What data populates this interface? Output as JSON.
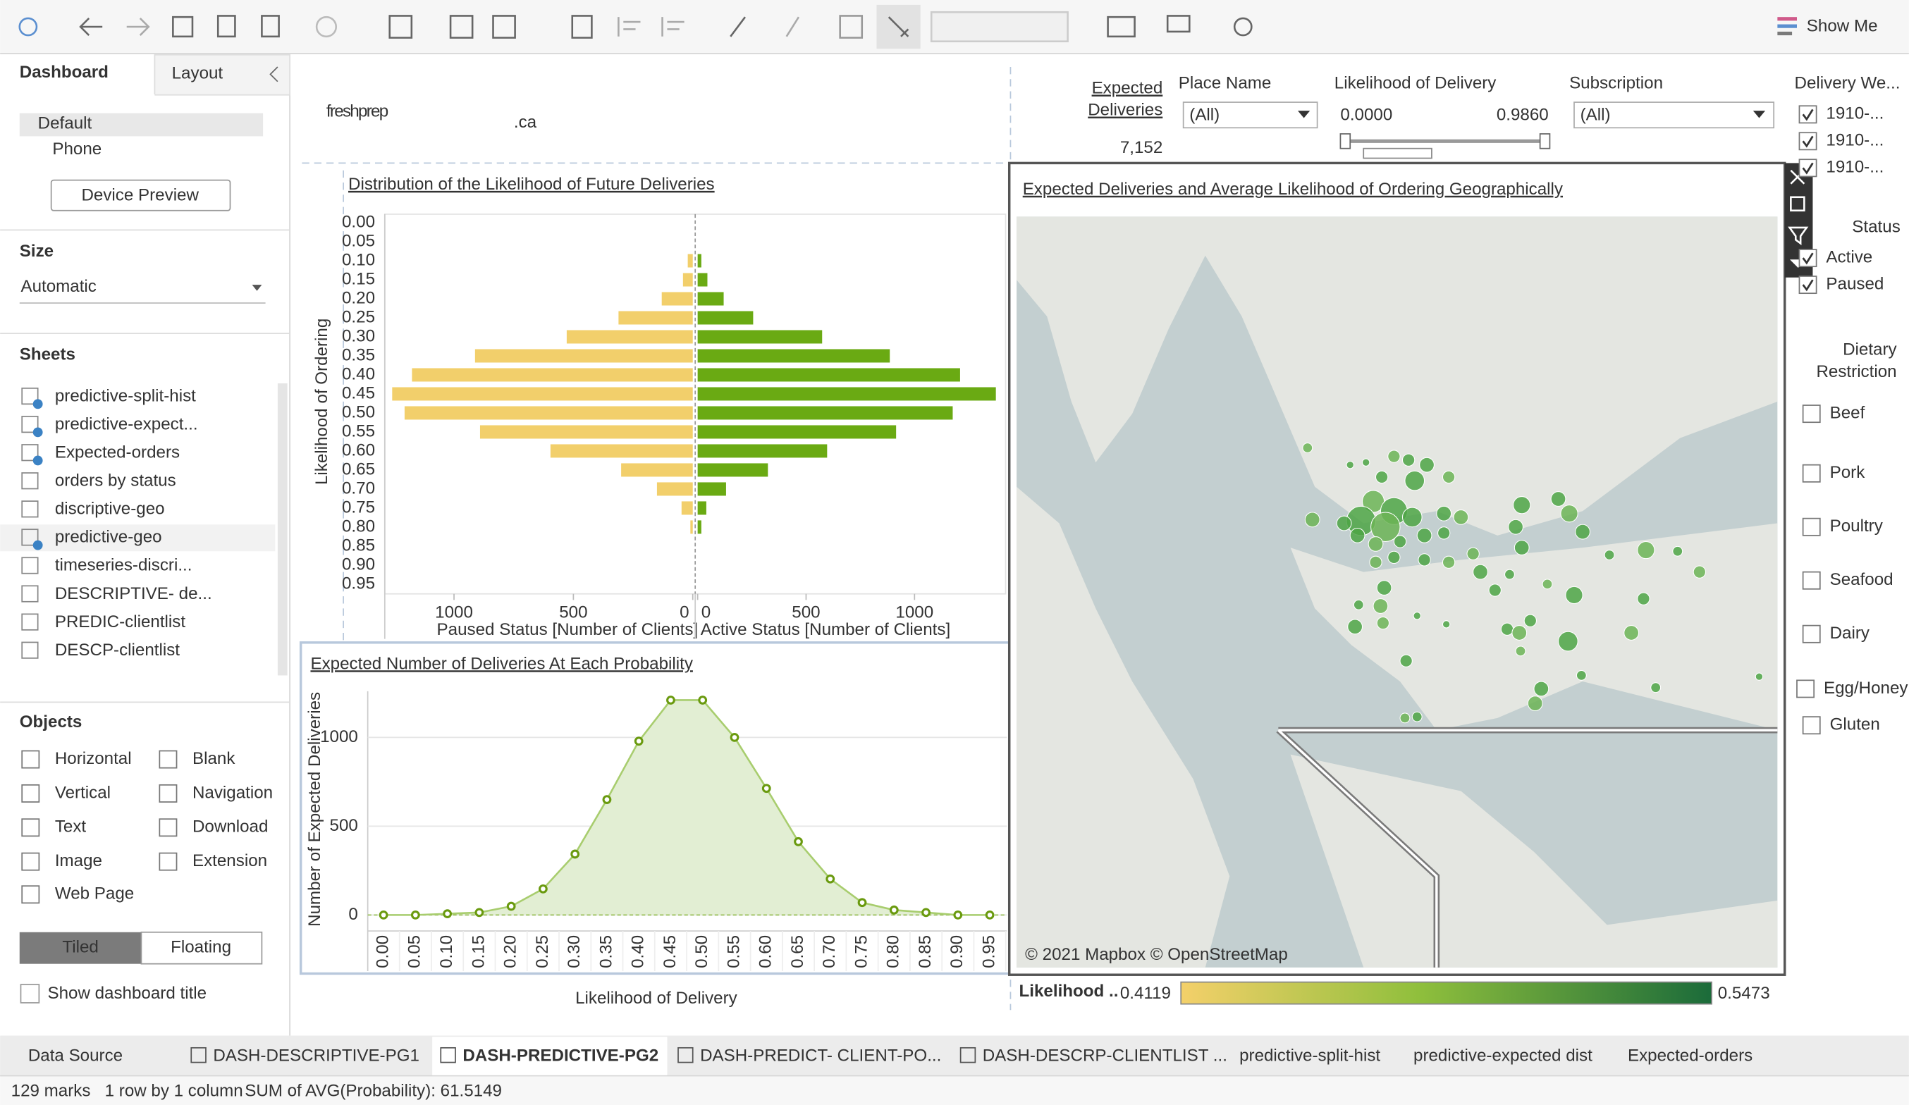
{
  "toolbar": {
    "show_me": "Show Me"
  },
  "side_panel": {
    "tabs": [
      "Dashboard",
      "Layout"
    ],
    "devices": [
      "Default",
      "Phone"
    ],
    "device_preview": "Device Preview",
    "size_title": "Size",
    "size_value": "Automatic",
    "sheets_title": "Sheets",
    "sheets": [
      "predictive-split-hist",
      "predictive-expect...",
      "Expected-orders",
      "orders by status",
      "discriptive-geo",
      "predictive-geo",
      "timeseries-discri...",
      "DESCRIPTIVE- de...",
      "PREDIC-clientlist",
      "DESCP-clientlist"
    ],
    "objects_title": "Objects",
    "objects": [
      "Horizontal",
      "Blank",
      "Vertical",
      "Navigation",
      "Text",
      "Download",
      "Image",
      "Extension",
      "Web Page"
    ],
    "layout_modes": [
      "Tiled",
      "Floating"
    ],
    "show_title": "Show dashboard title"
  },
  "dashboard": {
    "logo": "freshprep",
    "logo_suffix": ".ca",
    "kpi": {
      "label": [
        "Expected",
        "Deliveries"
      ],
      "value": "7,152"
    },
    "filters": {
      "place_name": {
        "title": "Place Name",
        "value": "(All)"
      },
      "likelihood": {
        "title": "Likelihood of Delivery",
        "min": "0.0000",
        "max": "0.9860"
      },
      "subscription": {
        "title": "Subscription",
        "value": "(All)"
      },
      "delivery_week": {
        "title": "Delivery We...",
        "items": [
          "1910-...",
          "1910-...",
          "1910-..."
        ]
      },
      "status": {
        "title": "Status",
        "items": [
          "Active",
          "Paused"
        ]
      },
      "dietary": {
        "title": [
          "Dietary",
          "Restriction"
        ],
        "items": [
          "Beef",
          "Pork",
          "Poultry",
          "Seafood",
          "Dairy",
          "Egg/Honey",
          "Gluten"
        ]
      }
    },
    "map": {
      "title": "Expected Deliveries and  Average Likelihood of Ordering  Geographically",
      "attribution": "© 2021 Mapbox © OpenStreetMap",
      "legend": {
        "title": "Likelihood ..",
        "min": "0.4119",
        "max": "0.5473"
      }
    }
  },
  "chart_data": [
    {
      "type": "bar",
      "title": "Distribution of the Likelihood of Future Deliveries",
      "y_label": "Likelihood of Ordering",
      "categories": [
        "0.00",
        "0.05",
        "0.10",
        "0.15",
        "0.20",
        "0.25",
        "0.30",
        "0.35",
        "0.40",
        "0.45",
        "0.50",
        "0.55",
        "0.60",
        "0.65",
        "0.70",
        "0.75",
        "0.80",
        "0.85",
        "0.90",
        "0.95"
      ],
      "series": [
        {
          "x_label": "Paused Status [Number of Clients]",
          "color": "#f2cf6b",
          "values": [
            0,
            0,
            21,
            41,
            130,
            311,
            528,
            912,
            1176,
            1259,
            1207,
            891,
            596,
            300,
            150,
            47,
            10,
            0,
            0,
            0
          ],
          "xlim": [
            0,
            1290
          ],
          "xticks": [
            0,
            500,
            1000
          ]
        },
        {
          "x_label": "Active Status [Number of Clients]",
          "color": "#6aaa13",
          "values": [
            0,
            0,
            17,
            45,
            120,
            256,
            574,
            886,
            1210,
            1375,
            1176,
            915,
            597,
            324,
            131,
            40,
            17,
            0,
            0,
            0
          ],
          "xlim": [
            0,
            1420
          ],
          "xticks": [
            0,
            500,
            1000
          ]
        }
      ]
    },
    {
      "type": "area",
      "title": "Expected Number of Deliveries  At Each Probability",
      "y_label": "Number of Expected Deliveries",
      "x_label": "Likelihood of Delivery",
      "categories": [
        "0.00",
        "0.05",
        "0.10",
        "0.15",
        "0.20",
        "0.25",
        "0.30",
        "0.35",
        "0.40",
        "0.45",
        "0.50",
        "0.55",
        "0.60",
        "0.65",
        "0.70",
        "0.75",
        "0.80",
        "0.85",
        "0.90",
        "0.95"
      ],
      "values": [
        0,
        0,
        7,
        14,
        49,
        147,
        343,
        650,
        979,
        1210,
        1210,
        1000,
        713,
        413,
        203,
        70,
        28,
        14,
        0,
        0
      ],
      "color": "#6a9a0f",
      "ylim": [
        -90,
        1260
      ],
      "yticks": [
        0,
        500,
        1000
      ]
    }
  ],
  "tabs": [
    "Data Source",
    "DASH-DESCRIPTIVE-PG1",
    "DASH-PREDICTIVE-PG2",
    "DASH-PREDICT- CLIENT-PO...",
    "DASH-DESCRP-CLIENTLIST ...",
    "predictive-split-hist",
    "predictive-expected dist",
    "Expected-orders"
  ],
  "status_bar": [
    "129 marks",
    "1 row by 1 column",
    "SUM of AVG(Probability): 61.5149"
  ]
}
